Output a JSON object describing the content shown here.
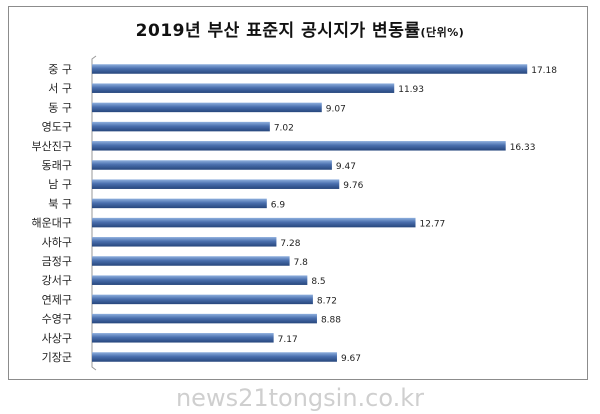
{
  "chart_data": {
    "type": "bar",
    "orientation": "horizontal",
    "title": "2019년 부산 표준지 공시지가 변동률",
    "title_unit": "(단위%)",
    "categories": [
      "중 구",
      "서 구",
      "동 구",
      "영도구",
      "부산진구",
      "동래구",
      "남 구",
      "북 구",
      "해운대구",
      "사하구",
      "금정구",
      "강서구",
      "연제구",
      "수영구",
      "사상구",
      "기장군"
    ],
    "values": [
      17.18,
      11.93,
      9.07,
      7.02,
      16.33,
      9.47,
      9.76,
      6.9,
      12.77,
      7.28,
      7.8,
      8.5,
      8.72,
      8.88,
      7.17,
      9.67
    ],
    "value_labels": [
      "17.18",
      "11.93",
      "9.07",
      "7.02",
      "16.33",
      "9.47",
      "9.76",
      "6.9",
      "12.77",
      "7.28",
      "7.8",
      "8.5",
      "8.72",
      "8.88",
      "7.17",
      "9.67"
    ],
    "xlim": [
      0,
      18
    ],
    "grid": false,
    "legend": false,
    "bar_color": "#4a6fae"
  },
  "watermark": "news21tongsin.co.kr"
}
